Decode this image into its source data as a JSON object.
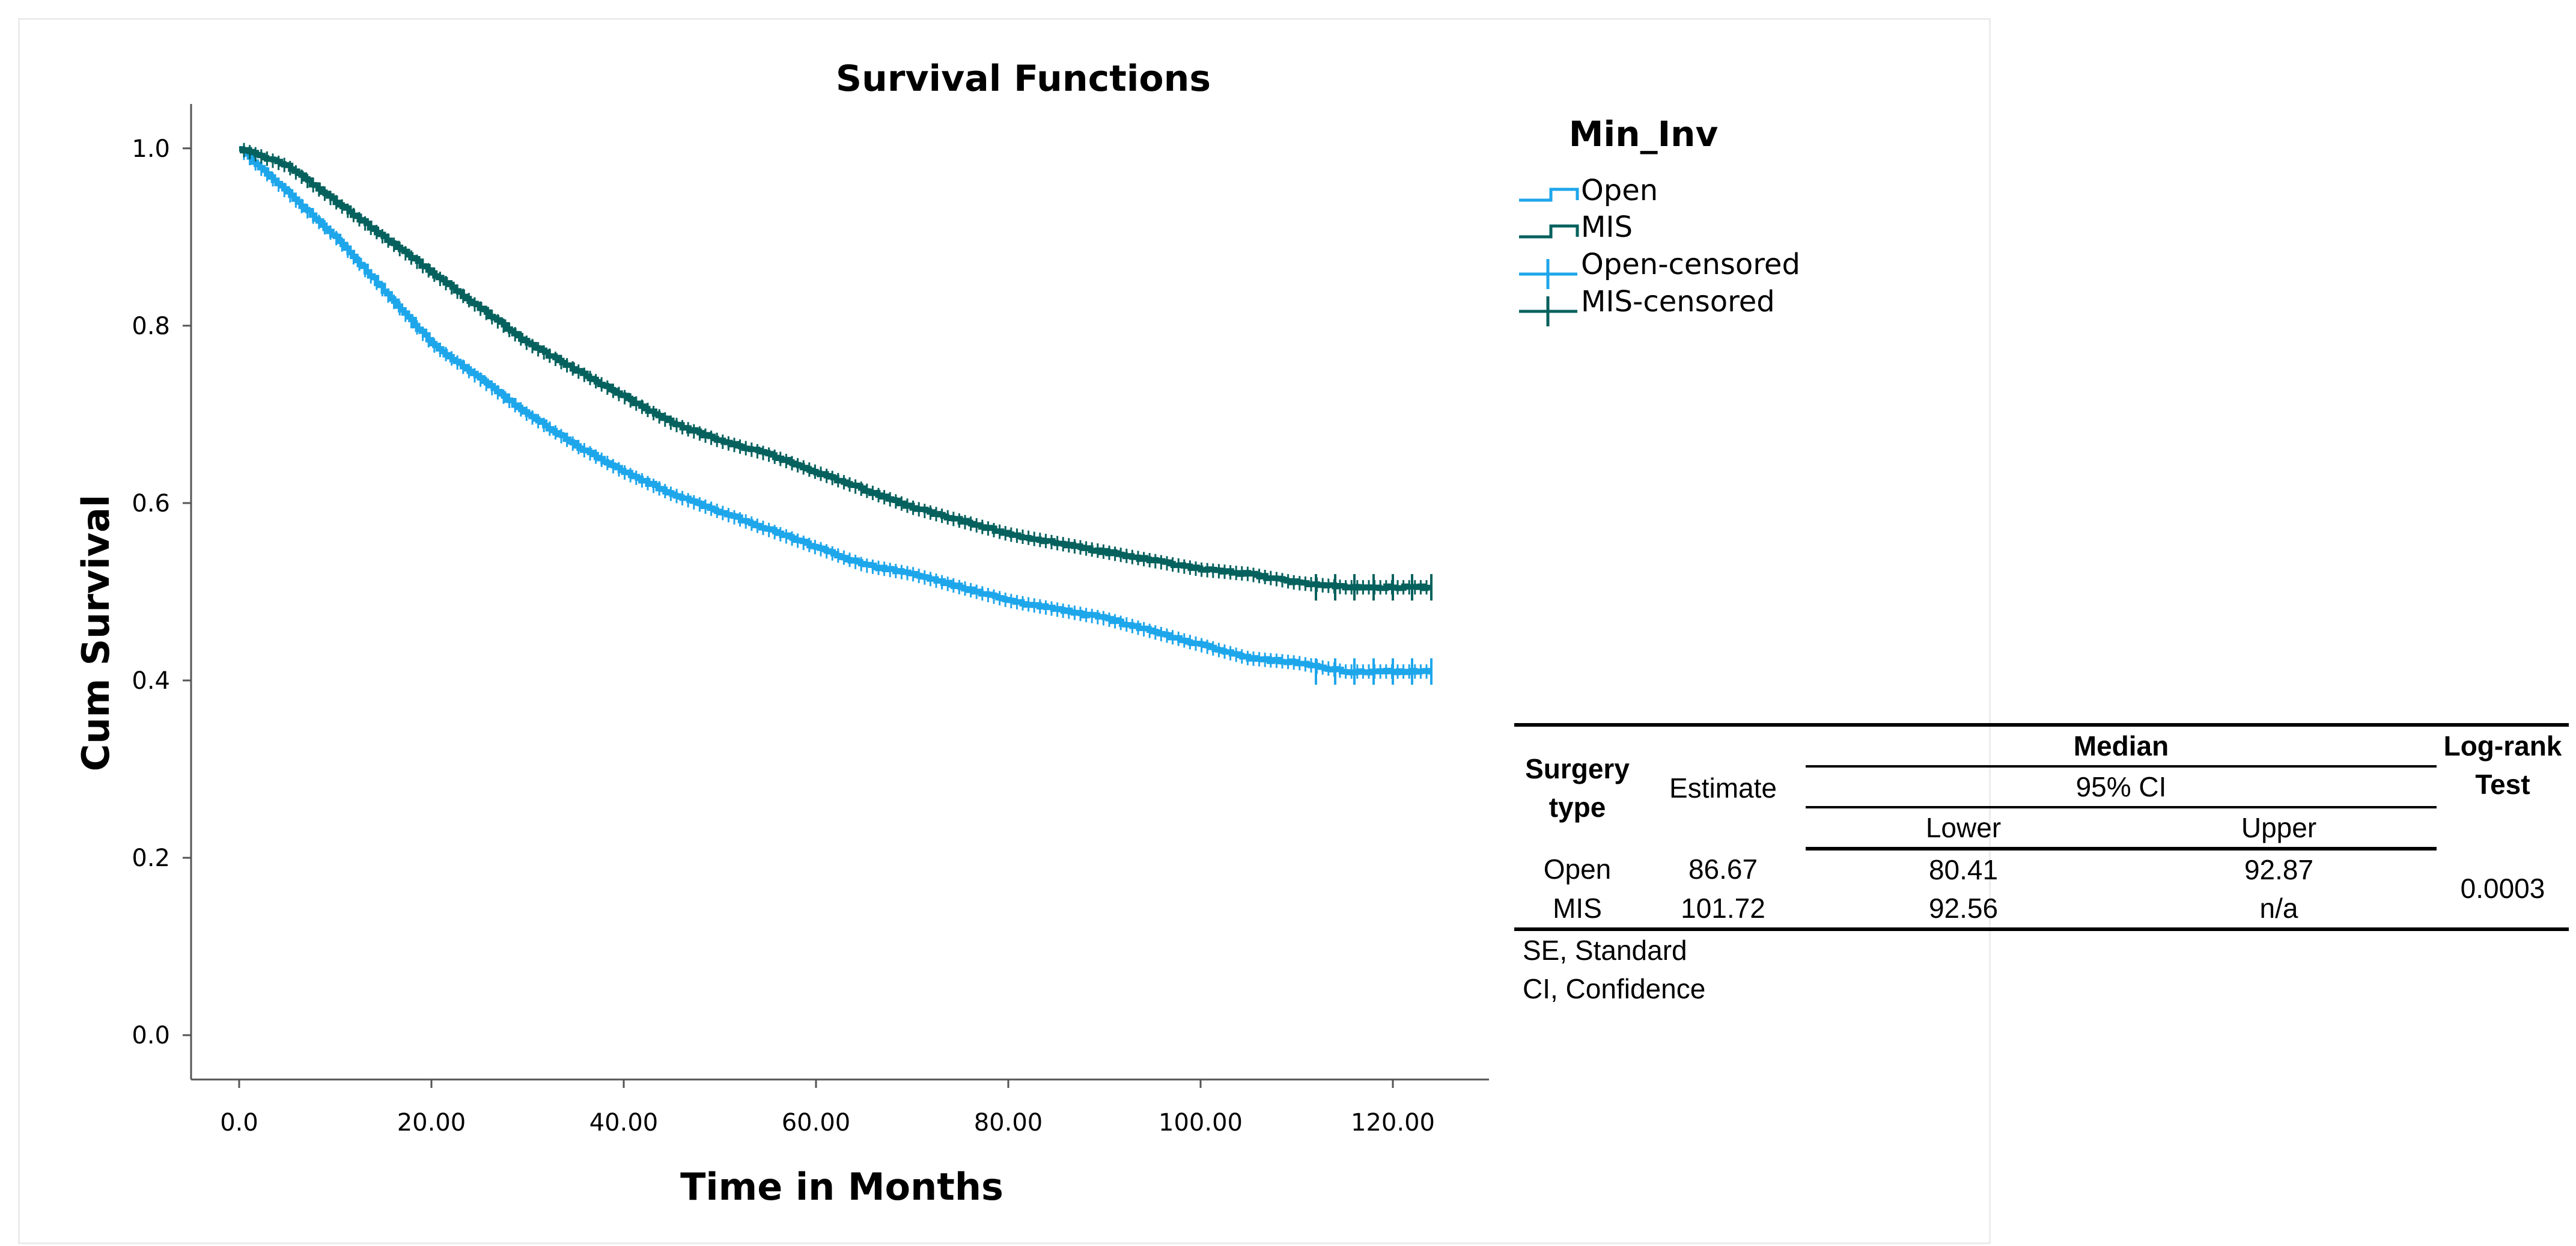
{
  "chart_data": {
    "type": "line",
    "subtype": "kaplan-meier-step",
    "title": "Survival Functions",
    "xlabel": "Time in Months",
    "ylabel": "Cum Survival",
    "xlim": [
      -5,
      130
    ],
    "ylim": [
      -0.05,
      1.05
    ],
    "x_ticks": [
      0,
      20,
      40,
      60,
      80,
      100,
      120
    ],
    "x_tick_labels": [
      "0.0",
      "20.00",
      "40.00",
      "60.00",
      "80.00",
      "100.00",
      "120.00"
    ],
    "y_ticks": [
      0,
      0.2,
      0.4,
      0.6,
      0.8,
      1.0
    ],
    "y_tick_labels": [
      "0.0",
      "0.2",
      "0.4",
      "0.6",
      "0.8",
      "1.0"
    ],
    "legend_title": "Min_Inv",
    "legend_entries": [
      "Open",
      "MIS",
      "Open-censored",
      "MIS-censored"
    ],
    "legend_position": "top-right",
    "series": [
      {
        "name": "Open",
        "color": "#1ea6eb",
        "x": [
          0,
          5,
          10,
          15,
          20,
          25,
          30,
          35,
          40,
          45,
          50,
          55,
          60,
          65,
          70,
          75,
          80,
          85,
          90,
          95,
          100,
          105,
          110,
          115,
          120,
          124
        ],
        "y": [
          1.0,
          0.95,
          0.9,
          0.84,
          0.78,
          0.74,
          0.7,
          0.665,
          0.635,
          0.61,
          0.59,
          0.57,
          0.55,
          0.53,
          0.52,
          0.505,
          0.49,
          0.48,
          0.47,
          0.455,
          0.44,
          0.425,
          0.42,
          0.41,
          0.41,
          0.41
        ],
        "censored_from": 112
      },
      {
        "name": "MIS",
        "color": "#05615d",
        "x": [
          0,
          5,
          10,
          15,
          20,
          25,
          30,
          35,
          40,
          45,
          50,
          55,
          60,
          65,
          70,
          75,
          80,
          85,
          90,
          95,
          100,
          105,
          110,
          115,
          120,
          124
        ],
        "y": [
          1.0,
          0.98,
          0.94,
          0.9,
          0.86,
          0.82,
          0.78,
          0.75,
          0.72,
          0.69,
          0.67,
          0.655,
          0.635,
          0.615,
          0.595,
          0.58,
          0.565,
          0.555,
          0.545,
          0.535,
          0.525,
          0.52,
          0.51,
          0.505,
          0.505,
          0.505
        ],
        "censored_from": 112
      }
    ]
  },
  "table": {
    "col_surgery": "Surgery type",
    "col_estimate": "Estimate",
    "col_median": "Median",
    "col_ci": "95% CI",
    "col_lower": "Lower",
    "col_upper": "Upper",
    "col_logrank": "Log-rank Test",
    "rows": [
      {
        "type": "Open",
        "estimate": "86.67",
        "lower": "80.41",
        "upper": "92.87"
      },
      {
        "type": "MIS",
        "estimate": "101.72",
        "lower": "92.56",
        "upper": "n/a"
      }
    ],
    "logrank_p": "0.0003",
    "footnotes": [
      "SE,   Standard",
      "CI,  Confidence"
    ]
  }
}
